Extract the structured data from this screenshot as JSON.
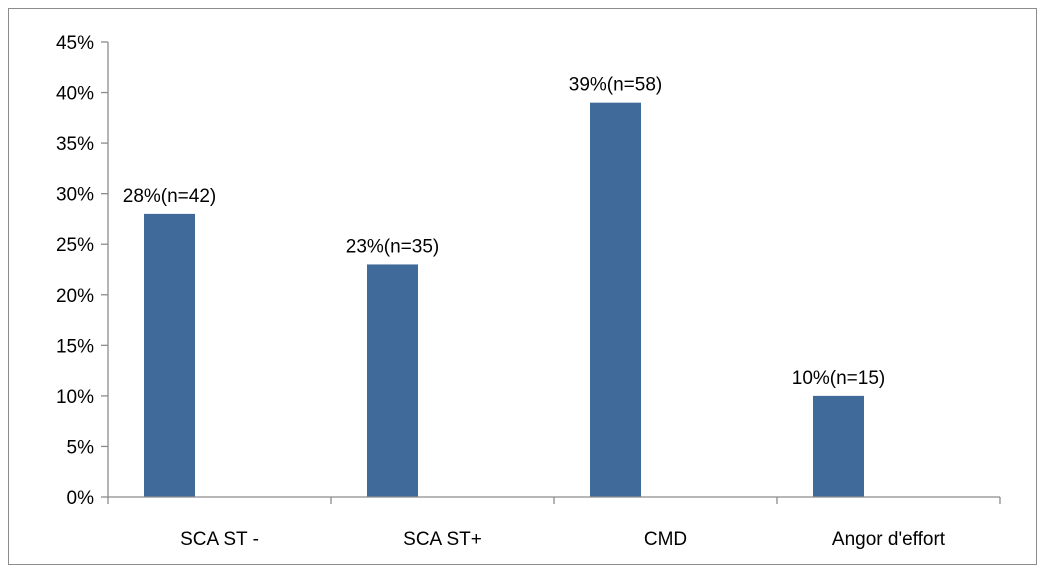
{
  "chart_data": {
    "type": "bar",
    "title": "",
    "xlabel": "",
    "ylabel": "",
    "categories": [
      "SCA ST -",
      "SCA ST+",
      "CMD",
      "Angor d'effort"
    ],
    "values": [
      28,
      23,
      39,
      10
    ],
    "data_labels": [
      "28%(n=42)",
      "23%(n=35)",
      "39%(n=58)",
      "10%(n=15)"
    ],
    "ylim": [
      0,
      45
    ],
    "y_ticks": [
      0,
      5,
      10,
      15,
      20,
      25,
      30,
      35,
      40,
      45
    ],
    "y_tick_labels": [
      "0%",
      "5%",
      "10%",
      "15%",
      "20%",
      "25%",
      "30%",
      "35%",
      "40%",
      "45%"
    ],
    "grid": false,
    "legend": "none",
    "bar_color": "#3f6a9a",
    "axis_color": "#8c8c8c"
  }
}
